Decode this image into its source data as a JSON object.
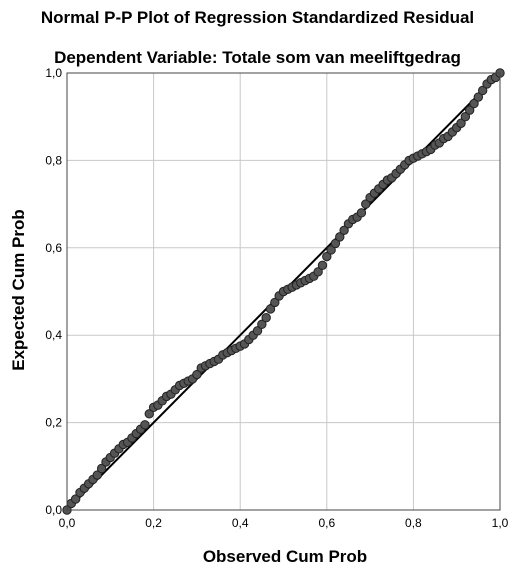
{
  "chart_data": {
    "type": "scatter",
    "title": "Normal P-P Plot of Regression Standardized Residual",
    "subtitle": "Dependent Variable: Totale som van meeliftgedrag",
    "xlabel": "Observed Cum Prob",
    "ylabel": "Expected Cum Prob",
    "xlim": [
      0,
      1
    ],
    "ylim": [
      0,
      1
    ],
    "x_ticks": [
      "0,0",
      "0,2",
      "0,4",
      "0,6",
      "0,8",
      "1,0"
    ],
    "y_ticks": [
      "0,0",
      "0,2",
      "0,4",
      "0,6",
      "0,8",
      "1,0"
    ],
    "grid": true,
    "reference_line": [
      [
        0,
        0
      ],
      [
        1,
        1
      ]
    ],
    "series": [
      {
        "points": [
          [
            0.0,
            0.0
          ],
          [
            0.01,
            0.015
          ],
          [
            0.02,
            0.025
          ],
          [
            0.03,
            0.04
          ],
          [
            0.04,
            0.05
          ],
          [
            0.05,
            0.06
          ],
          [
            0.06,
            0.07
          ],
          [
            0.07,
            0.08
          ],
          [
            0.08,
            0.095
          ],
          [
            0.09,
            0.11
          ],
          [
            0.1,
            0.12
          ],
          [
            0.11,
            0.13
          ],
          [
            0.12,
            0.14
          ],
          [
            0.13,
            0.15
          ],
          [
            0.14,
            0.155
          ],
          [
            0.15,
            0.165
          ],
          [
            0.16,
            0.175
          ],
          [
            0.17,
            0.185
          ],
          [
            0.18,
            0.195
          ],
          [
            0.19,
            0.22
          ],
          [
            0.2,
            0.235
          ],
          [
            0.21,
            0.24
          ],
          [
            0.22,
            0.25
          ],
          [
            0.23,
            0.26
          ],
          [
            0.24,
            0.265
          ],
          [
            0.25,
            0.275
          ],
          [
            0.26,
            0.285
          ],
          [
            0.27,
            0.29
          ],
          [
            0.28,
            0.295
          ],
          [
            0.29,
            0.3
          ],
          [
            0.3,
            0.31
          ],
          [
            0.31,
            0.325
          ],
          [
            0.32,
            0.33
          ],
          [
            0.33,
            0.335
          ],
          [
            0.34,
            0.34
          ],
          [
            0.35,
            0.345
          ],
          [
            0.36,
            0.355
          ],
          [
            0.37,
            0.36
          ],
          [
            0.38,
            0.365
          ],
          [
            0.39,
            0.37
          ],
          [
            0.4,
            0.375
          ],
          [
            0.41,
            0.38
          ],
          [
            0.42,
            0.39
          ],
          [
            0.43,
            0.4
          ],
          [
            0.44,
            0.41
          ],
          [
            0.45,
            0.425
          ],
          [
            0.46,
            0.44
          ],
          [
            0.47,
            0.46
          ],
          [
            0.48,
            0.475
          ],
          [
            0.49,
            0.49
          ],
          [
            0.5,
            0.5
          ],
          [
            0.51,
            0.505
          ],
          [
            0.52,
            0.51
          ],
          [
            0.53,
            0.515
          ],
          [
            0.54,
            0.52
          ],
          [
            0.55,
            0.525
          ],
          [
            0.56,
            0.53
          ],
          [
            0.57,
            0.535
          ],
          [
            0.58,
            0.545
          ],
          [
            0.59,
            0.56
          ],
          [
            0.6,
            0.58
          ],
          [
            0.61,
            0.595
          ],
          [
            0.62,
            0.61
          ],
          [
            0.63,
            0.625
          ],
          [
            0.64,
            0.64
          ],
          [
            0.65,
            0.655
          ],
          [
            0.66,
            0.665
          ],
          [
            0.67,
            0.67
          ],
          [
            0.68,
            0.68
          ],
          [
            0.69,
            0.7
          ],
          [
            0.7,
            0.715
          ],
          [
            0.71,
            0.725
          ],
          [
            0.72,
            0.735
          ],
          [
            0.73,
            0.745
          ],
          [
            0.74,
            0.755
          ],
          [
            0.75,
            0.76
          ],
          [
            0.76,
            0.77
          ],
          [
            0.77,
            0.78
          ],
          [
            0.78,
            0.79
          ],
          [
            0.79,
            0.8
          ],
          [
            0.8,
            0.805
          ],
          [
            0.81,
            0.81
          ],
          [
            0.82,
            0.815
          ],
          [
            0.83,
            0.82
          ],
          [
            0.84,
            0.825
          ],
          [
            0.85,
            0.835
          ],
          [
            0.86,
            0.84
          ],
          [
            0.87,
            0.85
          ],
          [
            0.88,
            0.855
          ],
          [
            0.89,
            0.865
          ],
          [
            0.9,
            0.875
          ],
          [
            0.91,
            0.885
          ],
          [
            0.92,
            0.9
          ],
          [
            0.93,
            0.915
          ],
          [
            0.94,
            0.93
          ],
          [
            0.95,
            0.945
          ],
          [
            0.96,
            0.96
          ],
          [
            0.97,
            0.975
          ],
          [
            0.98,
            0.985
          ],
          [
            0.99,
            0.99
          ],
          [
            1.0,
            1.0
          ]
        ]
      }
    ]
  }
}
